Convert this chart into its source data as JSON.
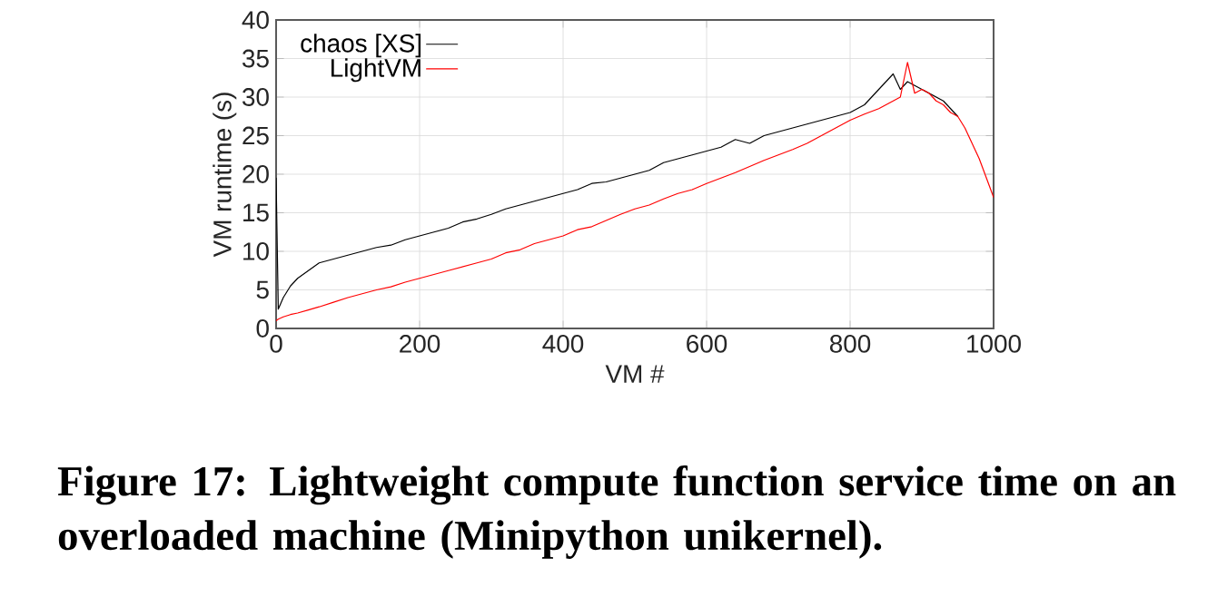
{
  "chart_data": {
    "type": "line",
    "xlabel": "VM #",
    "ylabel": "VM runtime (s)",
    "x": [
      0,
      3,
      10,
      20,
      30,
      45,
      60,
      80,
      100,
      120,
      140,
      160,
      180,
      200,
      220,
      240,
      260,
      280,
      300,
      320,
      340,
      360,
      380,
      400,
      420,
      440,
      460,
      480,
      500,
      520,
      540,
      560,
      580,
      600,
      620,
      640,
      660,
      680,
      700,
      720,
      740,
      760,
      780,
      800,
      820,
      840,
      860,
      870,
      880,
      890,
      900,
      910,
      920,
      930,
      940,
      950,
      960,
      970,
      980,
      990,
      1000
    ],
    "series": [
      {
        "name": "chaos [XS]",
        "color": "#000000",
        "values": [
          19.5,
          2.5,
          4,
          5.5,
          6.5,
          7.5,
          8.5,
          9,
          9.5,
          10,
          10.5,
          10.8,
          11.5,
          12,
          12.5,
          13,
          13.8,
          14.2,
          14.8,
          15.5,
          16,
          16.5,
          17,
          17.5,
          18,
          18.8,
          19,
          19.5,
          20,
          20.5,
          21.5,
          22,
          22.5,
          23,
          23.5,
          24.5,
          24,
          25,
          25.5,
          26,
          26.5,
          27,
          27.5,
          28,
          29,
          31,
          33,
          31,
          32,
          31.5,
          31,
          30.5,
          30,
          29.5,
          28.5,
          27.5,
          null,
          null,
          null,
          null,
          null
        ]
      },
      {
        "name": "LightVM",
        "color": "#ff0000",
        "values": [
          1,
          1.2,
          1.5,
          1.8,
          2,
          2.4,
          2.8,
          3.4,
          4,
          4.5,
          5,
          5.4,
          6,
          6.5,
          7,
          7.5,
          8,
          8.5,
          9,
          9.8,
          10.2,
          11,
          11.5,
          12,
          12.8,
          13.2,
          14,
          14.8,
          15.5,
          16,
          16.8,
          17.5,
          18,
          18.8,
          19.5,
          20.2,
          21,
          21.8,
          22.5,
          23.2,
          24,
          25,
          26,
          27,
          27.8,
          28.5,
          29.5,
          30,
          34.5,
          30.5,
          31,
          30.5,
          29.5,
          29,
          28,
          27.5,
          26,
          24,
          22,
          19.5,
          17
        ]
      }
    ],
    "xlim": [
      0,
      1000
    ],
    "xticks": [
      0,
      200,
      400,
      600,
      800,
      1000
    ],
    "ylim": [
      0,
      40
    ],
    "yticks": [
      0,
      5,
      10,
      15,
      20,
      25,
      30,
      35,
      40
    ],
    "grid": true,
    "legend": "top left",
    "marker": "none",
    "line_style": "solid",
    "annotations": [
      "Figure 17: Lightweight compute function service time on an overloaded machine (Minipython unikernel)."
    ]
  }
}
